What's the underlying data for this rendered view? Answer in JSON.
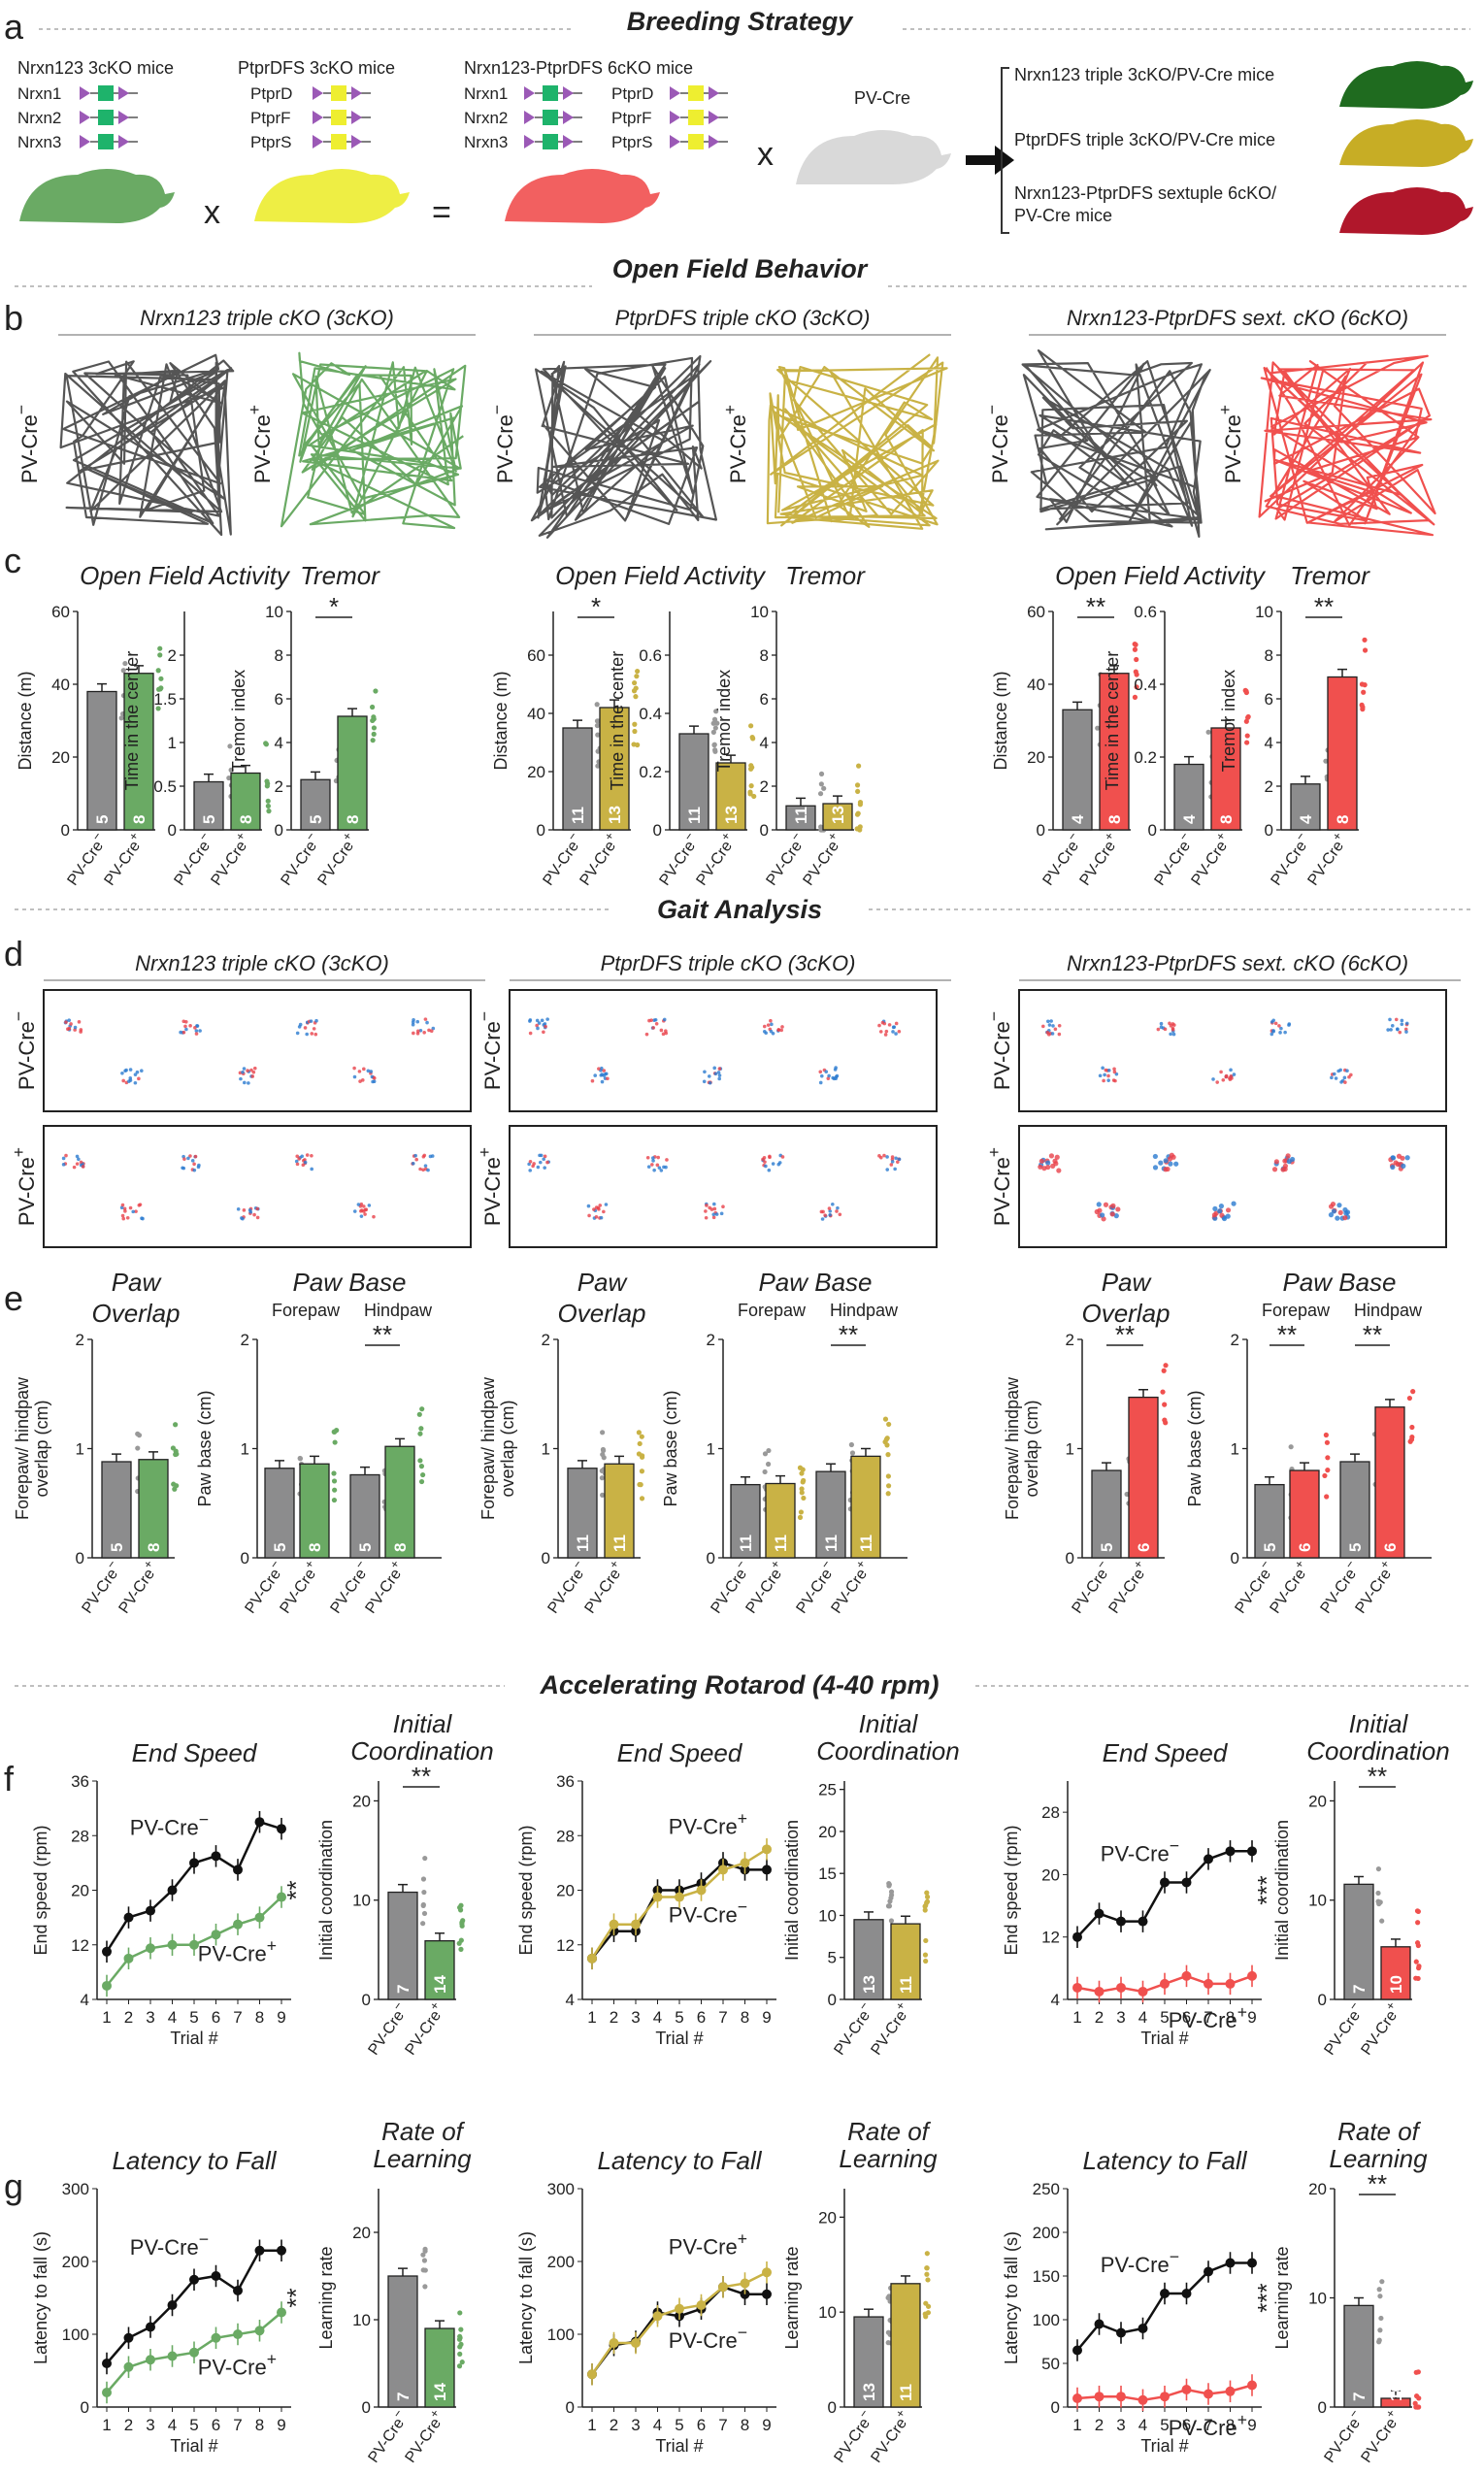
{
  "sections": {
    "a": {
      "letter": "a",
      "title": "Breeding Strategy"
    },
    "b_title": "Open Field Behavior",
    "d_title": "Gait Analysis",
    "f_title": "Accelerating Rotarod (4-40 rpm)"
  },
  "colors": {
    "gray": "#8c8c8d",
    "green": "#6aaa64",
    "gold": "#c9b245",
    "red": "#f0504e",
    "dark": "#333333"
  },
  "breeding": {
    "nrxn_label": "Nrxn123 3cKO mice",
    "nrxn_genes": [
      "Nrxn1",
      "Nrxn2",
      "Nrxn3"
    ],
    "ptpr_label": "PtprDFS 3cKO mice",
    "ptpr_genes": [
      "PtprD",
      "PtprF",
      "PtprS"
    ],
    "six_label": "Nrxn123-PtprDFS 6cKO mice",
    "pvcre": "PV-Cre",
    "times": "x",
    "equals": "=",
    "outcomes": [
      "Nrxn123 triple 3cKO/PV-Cre mice",
      "PtprDFS triple 3cKO/PV-Cre mice",
      "Nrxn123-PtprDFS sextuple 6cKO/",
      "PV-Cre mice"
    ]
  },
  "letters": {
    "b": "b",
    "c": "c",
    "d": "d",
    "e": "e",
    "f": "f",
    "g": "g"
  },
  "lines": [
    "Nrxn123 triple cKO (3cKO)",
    "PtprDFS  triple cKO (3cKO)",
    "Nrxn123-PtprDFS sext. cKO (6cKO)"
  ],
  "geno": {
    "neg": "PV-Cre",
    "pos": "PV-Cre",
    "neg_sup": "−",
    "pos_sup": "+"
  },
  "titles": {
    "ofa": "Open Field Activity",
    "tremor": "Tremor",
    "paw": "Paw",
    "overlap": "Overlap",
    "pawbase": "Paw Base",
    "forepaw": "Forepaw",
    "hindpaw": "Hindpaw",
    "endspeed": "End Speed",
    "initial": "Initial",
    "coordination": "Coordination",
    "latency": "Latency to Fall",
    "rate": "Rate of",
    "learning": "Learning"
  },
  "axes": {
    "distance": "Distance (m)",
    "center": "Time in the center",
    "tremor": "Tremor index",
    "overlap1": "Forepaw/ hindpaw",
    "overlap2": "overlap (cm)",
    "pawbase": "Paw base (cm)",
    "endspeed": "End speed (rpm)",
    "initcoord": "Initial coordination",
    "latency": "Latency to fall (s)",
    "lrate": "Learning rate",
    "trial": "Trial #"
  },
  "chart_data": [
    {
      "type": "bar",
      "panel": "c",
      "group": "Nrxn123 3cKO",
      "title": "Open Field Activity",
      "ylabel": "Distance (m)",
      "ylim": [
        0,
        60
      ],
      "categories": [
        "PV-Cre−",
        "PV-Cre+"
      ],
      "values": [
        38,
        43
      ],
      "n": [
        5,
        8
      ],
      "sig": ""
    },
    {
      "type": "bar",
      "panel": "c",
      "group": "Nrxn123 3cKO",
      "ylabel": "Time in the center",
      "ylim": [
        0,
        2.5
      ],
      "categories": [
        "PV-Cre−",
        "PV-Cre+"
      ],
      "values": [
        0.55,
        0.65
      ],
      "n": [
        5,
        8
      ],
      "sig": ""
    },
    {
      "type": "bar",
      "panel": "c",
      "group": "Nrxn123 3cKO",
      "title": "Tremor",
      "ylabel": "Tremor index",
      "ylim": [
        0,
        10
      ],
      "categories": [
        "PV-Cre−",
        "PV-Cre+"
      ],
      "values": [
        2.3,
        5.2
      ],
      "n": [
        5,
        8
      ],
      "sig": "*"
    },
    {
      "type": "bar",
      "panel": "c",
      "group": "PtprDFS 3cKO",
      "title": "Open Field Activity",
      "ylabel": "Distance (m)",
      "ylim": [
        0,
        75
      ],
      "categories": [
        "PV-Cre−",
        "PV-Cre+"
      ],
      "values": [
        35,
        42
      ],
      "n": [
        11,
        13
      ],
      "sig": "*"
    },
    {
      "type": "bar",
      "panel": "c",
      "group": "PtprDFS 3cKO",
      "ylabel": "Time in the center",
      "ylim": [
        0,
        0.75
      ],
      "categories": [
        "PV-Cre−",
        "PV-Cre+"
      ],
      "values": [
        0.33,
        0.23
      ],
      "n": [
        11,
        13
      ],
      "sig": ""
    },
    {
      "type": "bar",
      "panel": "c",
      "group": "PtprDFS 3cKO",
      "title": "Tremor",
      "ylabel": "Tremor index",
      "ylim": [
        0,
        10
      ],
      "categories": [
        "PV-Cre−",
        "PV-Cre+"
      ],
      "values": [
        1.1,
        1.2
      ],
      "n": [
        11,
        13
      ],
      "sig": ""
    },
    {
      "type": "bar",
      "panel": "c",
      "group": "Nrxn123-PtprDFS 6cKO",
      "title": "Open Field Activity",
      "ylabel": "Distance (m)",
      "ylim": [
        0,
        60
      ],
      "categories": [
        "PV-Cre−",
        "PV-Cre+"
      ],
      "values": [
        33,
        43
      ],
      "n": [
        4,
        8
      ],
      "sig": "**"
    },
    {
      "type": "bar",
      "panel": "c",
      "group": "Nrxn123-PtprDFS 6cKO",
      "ylabel": "Time in the center",
      "ylim": [
        0,
        0.6
      ],
      "categories": [
        "PV-Cre−",
        "PV-Cre+"
      ],
      "values": [
        0.18,
        0.28
      ],
      "n": [
        4,
        8
      ],
      "sig": ""
    },
    {
      "type": "bar",
      "panel": "c",
      "group": "Nrxn123-PtprDFS 6cKO",
      "title": "Tremor",
      "ylabel": "Tremor index",
      "ylim": [
        0,
        10
      ],
      "categories": [
        "PV-Cre−",
        "PV-Cre+"
      ],
      "values": [
        2.1,
        7.0
      ],
      "n": [
        4,
        8
      ],
      "sig": "**"
    },
    {
      "type": "bar",
      "panel": "e",
      "group": "Nrxn123 3cKO",
      "ylabel": "Forepaw/ hindpaw overlap (cm)",
      "ylim": [
        0,
        2
      ],
      "categories": [
        "PV-Cre−",
        "PV-Cre+"
      ],
      "values": [
        0.88,
        0.9
      ],
      "n": [
        5,
        8
      ],
      "sig": ""
    },
    {
      "type": "bar",
      "panel": "e",
      "group": "Nrxn123 3cKO",
      "ylabel": "Paw base (cm)",
      "ylim": [
        0,
        2
      ],
      "categories": [
        "Forepaw PV-Cre−",
        "Forepaw PV-Cre+",
        "Hindpaw PV-Cre−",
        "Hindpaw PV-Cre+"
      ],
      "values": [
        0.82,
        0.86,
        0.76,
        1.02
      ],
      "n": [
        5,
        8,
        5,
        8
      ],
      "sig_hind": "**"
    },
    {
      "type": "bar",
      "panel": "e",
      "group": "PtprDFS 3cKO",
      "ylabel": "Forepaw/ hindpaw overlap (cm)",
      "ylim": [
        0,
        2
      ],
      "categories": [
        "PV-Cre−",
        "PV-Cre+"
      ],
      "values": [
        0.82,
        0.86
      ],
      "n": [
        11,
        11
      ],
      "sig": ""
    },
    {
      "type": "bar",
      "panel": "e",
      "group": "PtprDFS 3cKO",
      "ylabel": "Paw base (cm)",
      "ylim": [
        0,
        2
      ],
      "categories": [
        "Forepaw PV-Cre−",
        "Forepaw PV-Cre+",
        "Hindpaw PV-Cre−",
        "Hindpaw PV-Cre+"
      ],
      "values": [
        0.67,
        0.68,
        0.79,
        0.93
      ],
      "n": [
        11,
        11,
        11,
        11
      ],
      "sig_hind": "**"
    },
    {
      "type": "bar",
      "panel": "e",
      "group": "Nrxn123-PtprDFS 6cKO",
      "ylabel": "Forepaw/ hindpaw overlap (cm)",
      "ylim": [
        0,
        2
      ],
      "categories": [
        "PV-Cre−",
        "PV-Cre+"
      ],
      "values": [
        0.8,
        1.47
      ],
      "n": [
        5,
        6
      ],
      "sig": "**"
    },
    {
      "type": "bar",
      "panel": "e",
      "group": "Nrxn123-PtprDFS 6cKO",
      "ylabel": "Paw base (cm)",
      "ylim": [
        0,
        2
      ],
      "categories": [
        "Forepaw PV-Cre−",
        "Forepaw PV-Cre+",
        "Hindpaw PV-Cre−",
        "Hindpaw PV-Cre+"
      ],
      "values": [
        0.67,
        0.8,
        0.88,
        1.38
      ],
      "n": [
        5,
        6,
        5,
        6
      ],
      "sig_fore": "**",
      "sig_hind": "**"
    },
    {
      "type": "line",
      "panel": "f",
      "group": "Nrxn123 3cKO",
      "title": "End Speed",
      "ylabel": "End speed (rpm)",
      "xlabel": "Trial #",
      "ylim": [
        4,
        36
      ],
      "yticks": [
        4,
        12,
        20,
        28,
        36
      ],
      "x": [
        1,
        2,
        3,
        4,
        5,
        6,
        7,
        8,
        9
      ],
      "series": [
        {
          "name": "PV-Cre−",
          "values": [
            11,
            16,
            17,
            20,
            24,
            25,
            23,
            30,
            29
          ]
        },
        {
          "name": "PV-Cre+",
          "values": [
            6,
            10,
            11.5,
            12,
            12,
            13.5,
            15,
            16,
            19
          ]
        }
      ],
      "sig": "**"
    },
    {
      "type": "bar",
      "panel": "f",
      "group": "Nrxn123 3cKO",
      "title": "Initial Coordination",
      "ylabel": "Initial coordination",
      "ylim": [
        0,
        22
      ],
      "categories": [
        "PV-Cre−",
        "PV-Cre+"
      ],
      "values": [
        10.8,
        5.9
      ],
      "n": [
        7,
        14
      ],
      "sig": "**"
    },
    {
      "type": "line",
      "panel": "f",
      "group": "PtprDFS 3cKO",
      "title": "End Speed",
      "ylabel": "End speed (rpm)",
      "xlabel": "Trial #",
      "ylim": [
        4,
        36
      ],
      "yticks": [
        4,
        12,
        20,
        28,
        36
      ],
      "x": [
        1,
        2,
        3,
        4,
        5,
        6,
        7,
        8,
        9
      ],
      "series": [
        {
          "name": "PV-Cre−",
          "values": [
            10,
            14,
            14,
            20,
            20,
            21,
            24,
            23,
            23
          ]
        },
        {
          "name": "PV-Cre+",
          "values": [
            10,
            15,
            15,
            19,
            19,
            20,
            23,
            24,
            26
          ]
        }
      ],
      "sig": ""
    },
    {
      "type": "bar",
      "panel": "f",
      "group": "PtprDFS 3cKO",
      "title": "Initial Coordination",
      "ylabel": "Initial coordination",
      "ylim": [
        0,
        26
      ],
      "categories": [
        "PV-Cre−",
        "PV-Cre+"
      ],
      "values": [
        9.5,
        9.0
      ],
      "n": [
        13,
        11
      ],
      "sig": ""
    },
    {
      "type": "line",
      "panel": "f",
      "group": "Nrxn123-PtprDFS 6cKO",
      "title": "End Speed",
      "ylabel": "End speed (rpm)",
      "xlabel": "Trial #",
      "ylim": [
        4,
        32
      ],
      "yticks": [
        4,
        12,
        20,
        28
      ],
      "x": [
        1,
        2,
        3,
        4,
        5,
        6,
        7,
        8,
        9
      ],
      "series": [
        {
          "name": "PV-Cre−",
          "values": [
            12,
            15,
            14,
            14,
            19,
            19,
            22,
            23,
            23
          ]
        },
        {
          "name": "PV-Cre+",
          "values": [
            5.5,
            5,
            5.5,
            5,
            6,
            7,
            6,
            6,
            7
          ]
        }
      ],
      "sig": "***"
    },
    {
      "type": "bar",
      "panel": "f",
      "group": "Nrxn123-PtprDFS 6cKO",
      "title": "Initial Coordination",
      "ylabel": "Initial coordination",
      "ylim": [
        0,
        22
      ],
      "categories": [
        "PV-Cre−",
        "PV-Cre+"
      ],
      "values": [
        11.6,
        5.3
      ],
      "n": [
        7,
        10
      ],
      "sig": "**"
    },
    {
      "type": "line",
      "panel": "g",
      "group": "Nrxn123 3cKO",
      "title": "Latency to Fall",
      "ylabel": "Latency to fall (s)",
      "xlabel": "Trial #",
      "ylim": [
        0,
        300
      ],
      "yticks": [
        0,
        100,
        200,
        300
      ],
      "x": [
        1,
        2,
        3,
        4,
        5,
        6,
        7,
        8,
        9
      ],
      "series": [
        {
          "name": "PV-Cre−",
          "values": [
            60,
            95,
            110,
            140,
            175,
            180,
            160,
            215,
            215
          ]
        },
        {
          "name": "PV-Cre+",
          "values": [
            20,
            55,
            65,
            70,
            75,
            95,
            100,
            105,
            130
          ]
        }
      ],
      "sig": "**"
    },
    {
      "type": "bar",
      "panel": "g",
      "group": "Nrxn123 3cKO",
      "title": "Rate of Learning",
      "ylabel": "Learning rate",
      "ylim": [
        0,
        25
      ],
      "categories": [
        "PV-Cre−",
        "PV-Cre+"
      ],
      "values": [
        15,
        9
      ],
      "n": [
        7,
        14
      ],
      "sig": ""
    },
    {
      "type": "line",
      "panel": "g",
      "group": "PtprDFS 3cKO",
      "title": "Latency to Fall",
      "ylabel": "Latency to fall (s)",
      "xlabel": "Trial #",
      "ylim": [
        0,
        300
      ],
      "yticks": [
        0,
        100,
        200,
        300
      ],
      "x": [
        1,
        2,
        3,
        4,
        5,
        6,
        7,
        8,
        9
      ],
      "series": [
        {
          "name": "PV-Cre−",
          "values": [
            45,
            85,
            90,
            130,
            125,
            135,
            165,
            155,
            155
          ]
        },
        {
          "name": "PV-Cre+",
          "values": [
            45,
            88,
            88,
            125,
            135,
            140,
            165,
            170,
            185
          ]
        }
      ],
      "sig": ""
    },
    {
      "type": "bar",
      "panel": "g",
      "group": "PtprDFS 3cKO",
      "title": "Rate of Learning",
      "ylabel": "Learning rate",
      "ylim": [
        0,
        23
      ],
      "categories": [
        "PV-Cre−",
        "PV-Cre+"
      ],
      "values": [
        9.5,
        13
      ],
      "n": [
        13,
        11
      ],
      "sig": ""
    },
    {
      "type": "line",
      "panel": "g",
      "group": "Nrxn123-PtprDFS 6cKO",
      "title": "Latency to Fall",
      "ylabel": "Latency to fall (s)",
      "xlabel": "Trial #",
      "ylim": [
        0,
        250
      ],
      "yticks": [
        0,
        50,
        100,
        150,
        200,
        250
      ],
      "x": [
        1,
        2,
        3,
        4,
        5,
        6,
        7,
        8,
        9
      ],
      "series": [
        {
          "name": "PV-Cre−",
          "values": [
            65,
            95,
            85,
            90,
            130,
            130,
            155,
            165,
            165
          ]
        },
        {
          "name": "PV-Cre+",
          "values": [
            10,
            12,
            12,
            8,
            12,
            20,
            15,
            18,
            25
          ]
        }
      ],
      "sig": "***"
    },
    {
      "type": "bar",
      "panel": "g",
      "group": "Nrxn123-PtprDFS 6cKO",
      "title": "Rate of Learning",
      "ylabel": "Learning rate",
      "ylim": [
        0,
        20
      ],
      "categories": [
        "PV-Cre−",
        "PV-Cre+"
      ],
      "values": [
        9.3,
        0.8
      ],
      "n": [
        7,
        10
      ],
      "sig": "**"
    }
  ]
}
